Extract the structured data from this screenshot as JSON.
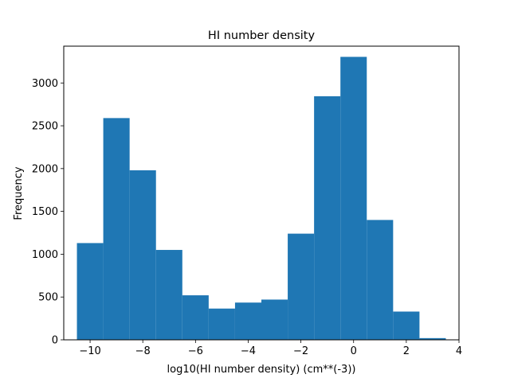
{
  "chart_data": {
    "type": "bar",
    "subtype": "histogram",
    "title": "HI number density",
    "xlabel": "log10(HI number density) (cm**(-3))",
    "ylabel": "Frequency",
    "bin_edges": [
      -10.5,
      -9.5,
      -8.5,
      -7.5,
      -6.5,
      -5.5,
      -4.5,
      -3.5,
      -2.5,
      -1.5,
      -0.5,
      0.5,
      1.5,
      2.5,
      3.5
    ],
    "values": [
      1130,
      2590,
      1980,
      1050,
      520,
      365,
      435,
      470,
      1240,
      2845,
      3305,
      1400,
      330,
      20
    ],
    "xlim": [
      -11,
      4
    ],
    "ylim": [
      0,
      3430
    ],
    "xticks": [
      -10,
      -8,
      -6,
      -4,
      -2,
      0,
      2,
      4
    ],
    "yticks": [
      0,
      500,
      1000,
      1500,
      2000,
      2500,
      3000
    ],
    "bar_color": "#1f77b4",
    "grid": false
  }
}
